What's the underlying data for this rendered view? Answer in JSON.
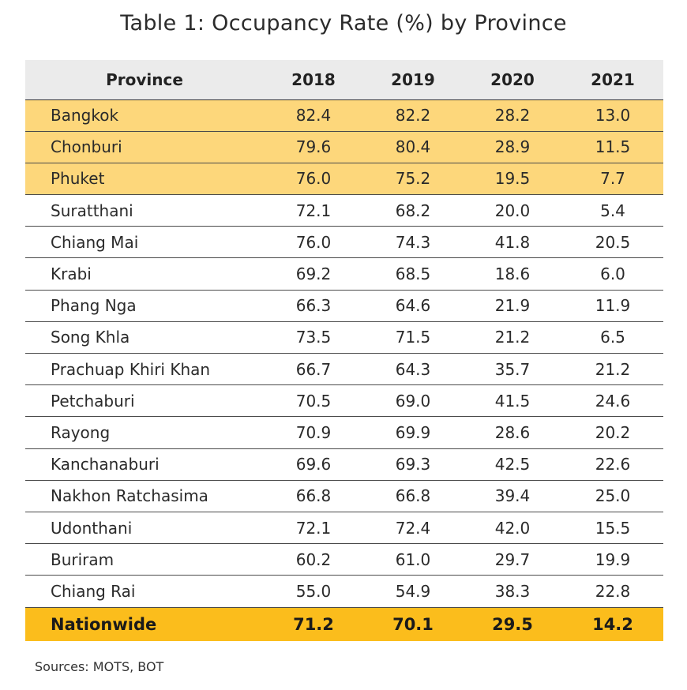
{
  "title": "Table 1: Occupancy Rate (%) by Province",
  "source": "Sources: MOTS, BOT",
  "colors": {
    "header_bg": "#ebebeb",
    "highlight_row": "#fdd77b",
    "total_row": "#fbbd1c"
  },
  "chart_data": {
    "type": "table",
    "title": "Table 1: Occupancy Rate (%) by Province",
    "columns": [
      "Province",
      "2018",
      "2019",
      "2020",
      "2021"
    ],
    "highlighted_rows": [
      "Bangkok",
      "Chonburi",
      "Phuket"
    ],
    "rows": [
      {
        "province": "Bangkok",
        "values": [
          "82.4",
          "82.2",
          "28.2",
          "13.0"
        ],
        "highlight": true
      },
      {
        "province": "Chonburi",
        "values": [
          "79.6",
          "80.4",
          "28.9",
          "11.5"
        ],
        "highlight": true
      },
      {
        "province": "Phuket",
        "values": [
          "76.0",
          "75.2",
          "19.5",
          "7.7"
        ],
        "highlight": true
      },
      {
        "province": "Suratthani",
        "values": [
          "72.1",
          "68.2",
          "20.0",
          "5.4"
        ]
      },
      {
        "province": "Chiang Mai",
        "values": [
          "76.0",
          "74.3",
          "41.8",
          "20.5"
        ]
      },
      {
        "province": "Krabi",
        "values": [
          "69.2",
          "68.5",
          "18.6",
          "6.0"
        ]
      },
      {
        "province": "Phang Nga",
        "values": [
          "66.3",
          "64.6",
          "21.9",
          "11.9"
        ]
      },
      {
        "province": "Song Khla",
        "values": [
          "73.5",
          "71.5",
          "21.2",
          "6.5"
        ]
      },
      {
        "province": "Prachuap Khiri Khan",
        "values": [
          "66.7",
          "64.3",
          "35.7",
          "21.2"
        ]
      },
      {
        "province": "Petchaburi",
        "values": [
          "70.5",
          "69.0",
          "41.5",
          "24.6"
        ]
      },
      {
        "province": "Rayong",
        "values": [
          "70.9",
          "69.9",
          "28.6",
          "20.2"
        ]
      },
      {
        "province": "Kanchanaburi",
        "values": [
          "69.6",
          "69.3",
          "42.5",
          "22.6"
        ]
      },
      {
        "province": "Nakhon Ratchasima",
        "values": [
          "66.8",
          "66.8",
          "39.4",
          "25.0"
        ]
      },
      {
        "province": "Udonthani",
        "values": [
          "72.1",
          "72.4",
          "42.0",
          "15.5"
        ]
      },
      {
        "province": "Buriram",
        "values": [
          "60.2",
          "61.0",
          "29.7",
          "19.9"
        ]
      },
      {
        "province": "Chiang Rai",
        "values": [
          "55.0",
          "54.9",
          "38.3",
          "22.8"
        ]
      }
    ],
    "total": {
      "province": "Nationwide",
      "values": [
        "71.2",
        "70.1",
        "29.5",
        "14.2"
      ]
    }
  }
}
